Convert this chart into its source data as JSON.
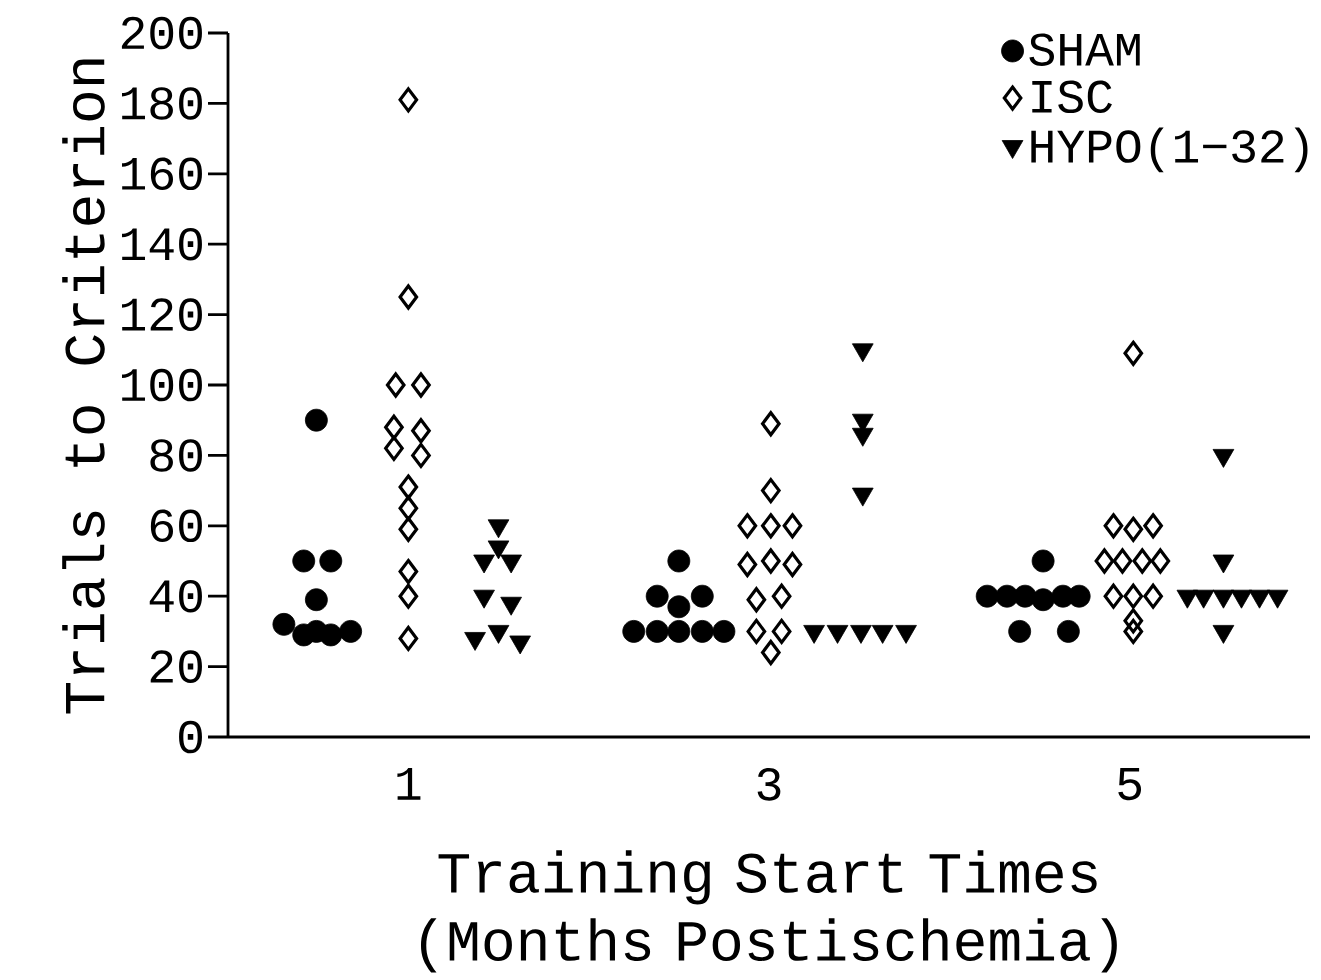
{
  "chart_data": {
    "type": "scatter",
    "xlabel": "Training Start Times (Months Postischemia)",
    "ylabel": "Trials to Criterion",
    "xlim": [
      0,
      6
    ],
    "xticks": [
      1,
      3,
      5
    ],
    "ylim": [
      0,
      200
    ],
    "yticks": [
      0,
      20,
      40,
      60,
      80,
      100,
      120,
      140,
      160,
      180,
      200
    ],
    "legend": "top right",
    "series": [
      {
        "name": "SHAM",
        "color": "#000000",
        "marker": "circle",
        "x": [
          0.49,
          0.42,
          0.57,
          0.49,
          0.31,
          0.42,
          0.49,
          0.57,
          0.68,
          2.5,
          2.38,
          2.63,
          2.5,
          2.25,
          2.38,
          2.5,
          2.63,
          2.75,
          4.52,
          4.21,
          4.32,
          4.42,
          4.52,
          4.63,
          4.72,
          4.39,
          4.66
        ],
        "values": [
          90,
          50,
          50,
          39,
          32,
          29,
          30,
          29,
          30,
          50,
          40,
          40,
          37,
          30,
          30,
          30,
          30,
          30,
          50,
          40,
          40,
          40,
          39,
          40,
          40,
          30,
          30
        ]
      },
      {
        "name": "ISC",
        "color": "#000000",
        "marker": "diamond",
        "x": [
          1.0,
          1.0,
          0.93,
          1.07,
          0.92,
          1.07,
          0.92,
          1.07,
          1.0,
          1.0,
          1.0,
          1.0,
          1.0,
          1.0,
          3.01,
          3.01,
          2.88,
          3.01,
          3.13,
          2.88,
          3.01,
          3.13,
          2.93,
          3.07,
          2.93,
          3.07,
          3.01,
          5.02,
          4.91,
          5.02,
          5.13,
          4.86,
          4.96,
          5.07,
          5.17,
          4.91,
          5.02,
          5.13,
          5.02,
          5.02
        ],
        "values": [
          181,
          125,
          100,
          100,
          88,
          87,
          82,
          80,
          71,
          65,
          59,
          47,
          40,
          28,
          89,
          70,
          60,
          60,
          60,
          49,
          50,
          49,
          39,
          40,
          30,
          30,
          24,
          109,
          60,
          59,
          60,
          50,
          50,
          50,
          50,
          40,
          40,
          40,
          33,
          30
        ]
      },
      {
        "name": "HYPO(1−32)",
        "color": "#000000",
        "marker": "triangle",
        "x": [
          1.5,
          1.5,
          1.42,
          1.57,
          1.42,
          1.57,
          1.37,
          1.5,
          1.62,
          3.52,
          3.52,
          3.52,
          3.52,
          3.25,
          3.38,
          3.51,
          3.63,
          3.76,
          5.52,
          5.52,
          5.32,
          5.41,
          5.52,
          5.62,
          5.72,
          5.82,
          5.52
        ],
        "values": [
          60,
          54,
          50,
          50,
          40,
          38,
          28,
          30,
          27,
          110,
          90,
          86,
          69,
          30,
          30,
          30,
          30,
          30,
          80,
          50,
          40,
          40,
          40,
          40,
          40,
          40,
          30
        ]
      }
    ]
  }
}
